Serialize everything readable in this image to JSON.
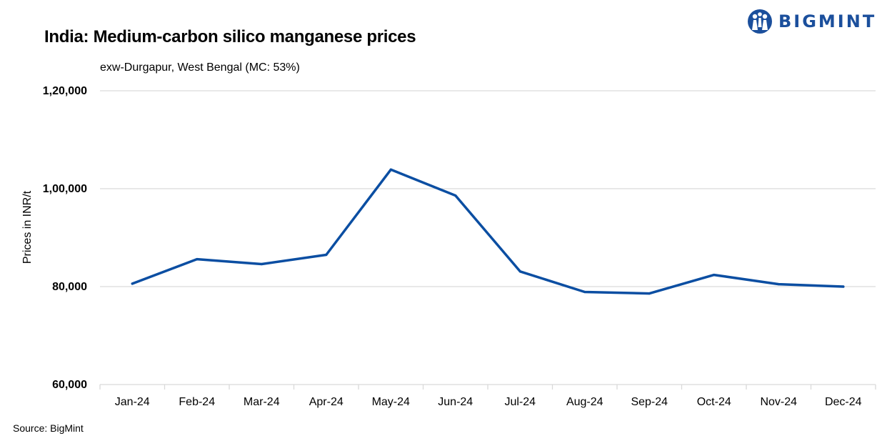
{
  "header": {
    "title": "India: Medium-carbon silico manganese prices",
    "subtitle": "exw-Durgapur, West Bengal (MC: 53%)"
  },
  "footer": {
    "source": "Source: BigMint"
  },
  "logo": {
    "text": "BIGMINT",
    "icon": "bigmint-people-icon"
  },
  "colors": {
    "line": "#0b4ea2",
    "grid": "#d9d9d9",
    "brand": "#1b4f9c"
  },
  "chart_data": {
    "type": "line",
    "title": "India: Medium-carbon silico manganese prices",
    "subtitle": "exw-Durgapur, West Bengal (MC: 53%)",
    "xlabel": "",
    "ylabel": "Prices in INR/t",
    "categories": [
      "Jan-24",
      "Feb-24",
      "Mar-24",
      "Apr-24",
      "May-24",
      "Jun-24",
      "Jul-24",
      "Aug-24",
      "Sep-24",
      "Oct-24",
      "Nov-24",
      "Dec-24"
    ],
    "series": [
      {
        "values": [
          80600,
          85600,
          84600,
          86500,
          103900,
          98600,
          83100,
          78900,
          78600,
          82400,
          80500,
          80000
        ]
      }
    ],
    "ylim": [
      60000,
      120000
    ],
    "yticks": [
      60000,
      80000,
      100000,
      120000
    ],
    "ytick_labels": [
      "60,000",
      "80,000",
      "1,00,000",
      "1,20,000"
    ],
    "grid": true,
    "legend": "none"
  }
}
